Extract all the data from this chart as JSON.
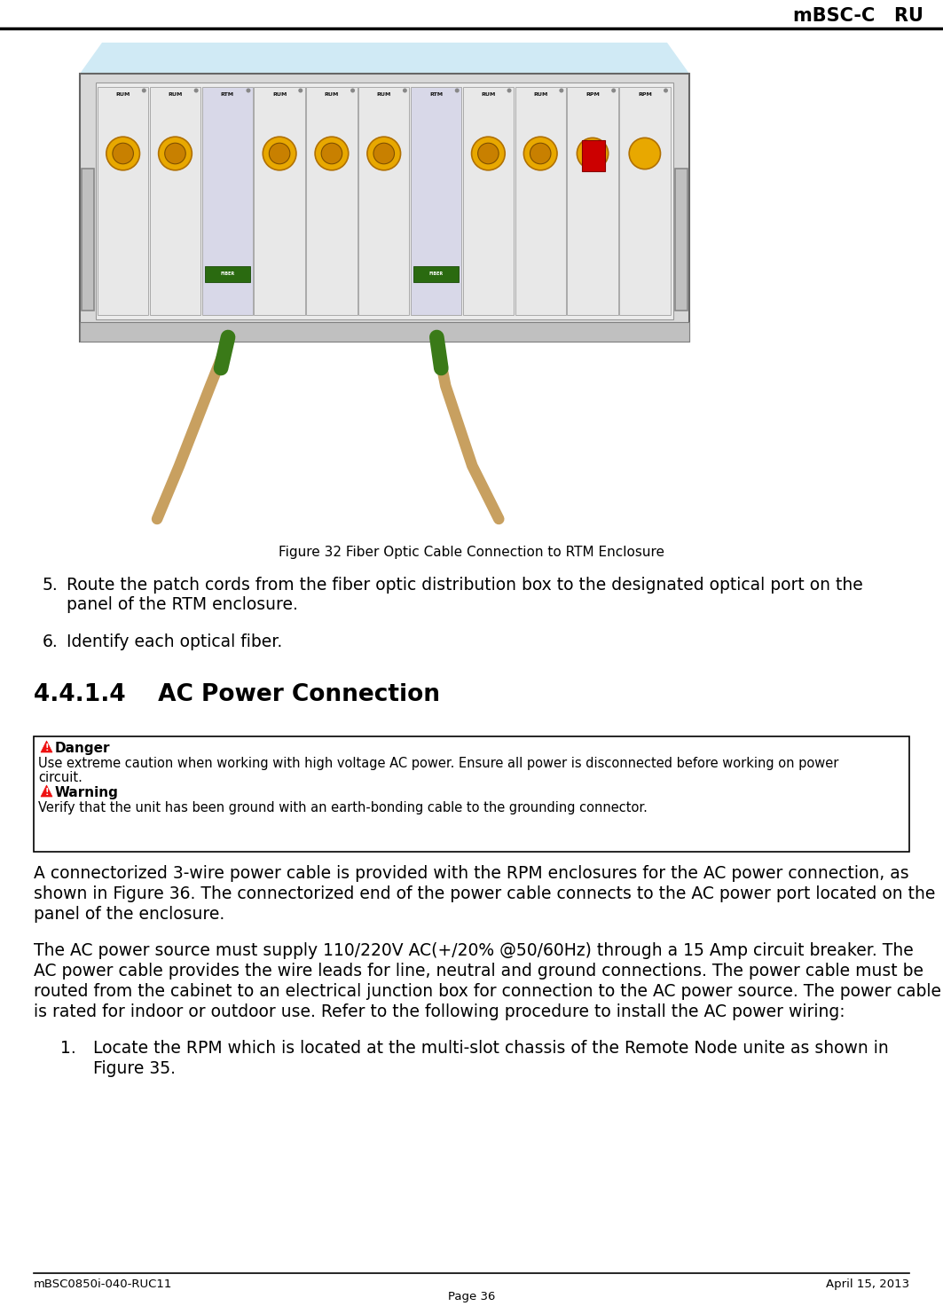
{
  "header_title": "mBSC-C   RU",
  "footer_left": "mBSC0850i-040-RUC11",
  "footer_right": "April 15, 2013",
  "footer_center": "Page 36",
  "figure_caption": "Figure 32 Fiber Optic Cable Connection to RTM Enclosure",
  "section_heading": "4.4.1.4    AC Power Connection",
  "item5_num": "5.",
  "item5_line1": "Route the patch cords from the fiber optic distribution box to the designated optical port on the",
  "item5_line2": "panel of the RTM enclosure.",
  "item6_num": "6.",
  "item6_text": "Identify each optical fiber.",
  "danger_label": "Danger",
  "danger_text1": "Use extreme caution when working with high voltage AC power. Ensure all power is disconnected before working on power",
  "danger_text2": "circuit.",
  "warning_label": "Warning",
  "warning_text": "Verify that the unit has been ground with an earth-bonding cable to the grounding connector.",
  "para1_line1": "A connectorized 3-wire power cable is provided with the RPM enclosures for the AC power connection, as",
  "para1_line2": "shown in Figure 36. The connectorized end of the power cable connects to the AC power port located on the",
  "para1_line3": "panel of the enclosure.",
  "para2_line1": "The AC power source must supply 110/220V AC(+/20% @50/60Hz) through a 15 Amp circuit breaker. The",
  "para2_line2": "AC power cable provides the wire leads for line, neutral and ground connections. The power cable must be",
  "para2_line3": "routed from the cabinet to an electrical junction box for connection to the AC power source. The power cable",
  "para2_line4": "is rated for indoor or outdoor use. Refer to the following procedure to install the AC power wiring:",
  "item1_num": "1.",
  "item1_line1": "Locate the RPM which is located at the multi-slot chassis of the Remote Node unite as shown in",
  "item1_line2": "Figure 35.",
  "bg_color": "#ffffff",
  "text_color": "#000000",
  "slot_labels": [
    "RUM",
    "RUM",
    "RTM",
    "RUM",
    "RUM",
    "RUM",
    "RTM",
    "RUM",
    "RUM",
    "RPM",
    "RPM"
  ]
}
